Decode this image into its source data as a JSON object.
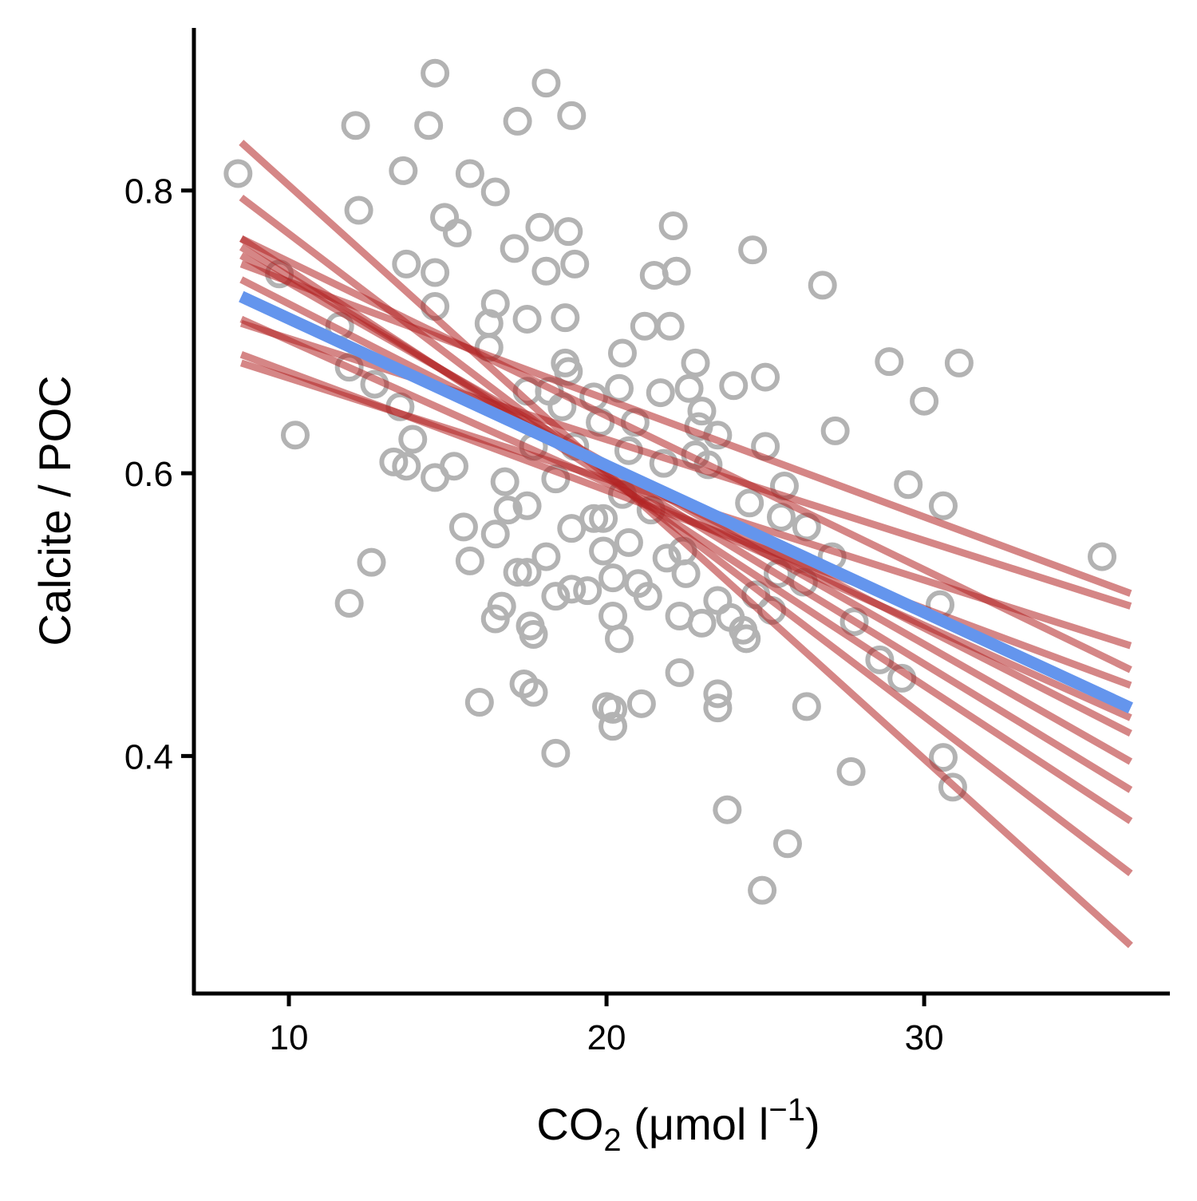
{
  "chart_data": {
    "type": "scatter",
    "x_label_parts": [
      "CO",
      "2",
      " (μmol l",
      "−1",
      ")"
    ],
    "y_label": "Calcite / POC",
    "xlim": [
      7.01,
      37.71
    ],
    "ylim": [
      0.232,
      0.915
    ],
    "xticks": [
      10,
      20,
      30
    ],
    "yticks": [
      0.4,
      0.6,
      0.8
    ],
    "point_color": "#b3b3b3",
    "fit_color": "#b22222",
    "mean_fit_color": "#6495ed",
    "points": {
      "x": [
        8.4,
        9.7,
        10.2,
        12.1,
        12.2,
        11.9,
        12.6,
        13.6,
        14.4,
        14.6,
        13.7,
        14.6,
        14.6,
        14.9,
        15.3,
        15.7,
        16.5,
        17.2,
        18.1,
        18.9,
        17.1,
        17.9,
        18.8,
        19.0,
        18.1,
        16.5,
        16.3,
        17.5,
        18.7,
        16.3,
        11.6,
        11.9,
        12.7,
        13.5,
        13.9,
        13.3,
        13.7,
        14.6,
        15.2,
        15.5,
        15.7,
        16.8,
        17.5,
        16.9,
        16.5,
        17.2,
        17.5,
        16.7,
        16.5,
        17.6,
        17.7,
        17.4,
        17.7,
        16.0,
        18.4,
        18.1,
        18.4,
        18.9,
        18.9,
        19.4,
        19.9,
        19.9,
        19.6,
        20.2,
        20.2,
        20.4,
        20.0,
        20.2,
        20.2,
        21.1,
        21.0,
        21.3,
        21.9,
        22.4,
        22.5,
        22.3,
        23.0,
        22.3,
        23.5,
        23.5,
        23.5,
        23.9,
        24.3,
        24.4,
        23.8,
        24.9,
        25.7,
        25.2,
        24.7,
        25.4,
        26.2,
        26.3,
        27.1,
        27.7,
        27.8,
        28.6,
        29.3,
        30.5,
        30.6,
        30.9,
        30.6,
        29.5,
        30.0,
        28.9,
        31.1,
        35.6,
        27.2,
        26.8,
        24.6,
        25.0,
        24.0,
        25.0,
        25.6,
        24.5,
        25.5,
        26.3,
        22.1,
        21.5,
        22.2,
        21.2,
        22.0,
        20.5,
        22.8,
        20.4,
        21.7,
        22.6,
        23.0,
        22.9,
        23.5,
        22.8,
        23.2,
        21.8,
        20.9,
        20.7,
        19.6,
        19.8,
        18.7,
        18.8,
        18.2,
        17.5,
        18.6,
        17.7,
        18.4,
        20.5,
        20.7,
        21.4,
        19.0
      ],
      "y": [
        0.812,
        0.741,
        0.627,
        0.846,
        0.786,
        0.508,
        0.537,
        0.814,
        0.846,
        0.883,
        0.748,
        0.742,
        0.718,
        0.781,
        0.77,
        0.812,
        0.799,
        0.849,
        0.876,
        0.853,
        0.759,
        0.774,
        0.771,
        0.748,
        0.743,
        0.72,
        0.706,
        0.709,
        0.71,
        0.689,
        0.704,
        0.675,
        0.663,
        0.647,
        0.624,
        0.608,
        0.605,
        0.597,
        0.605,
        0.562,
        0.538,
        0.594,
        0.577,
        0.574,
        0.557,
        0.53,
        0.53,
        0.506,
        0.497,
        0.492,
        0.486,
        0.451,
        0.445,
        0.438,
        0.402,
        0.541,
        0.513,
        0.518,
        0.561,
        0.517,
        0.568,
        0.545,
        0.568,
        0.526,
        0.499,
        0.483,
        0.435,
        0.433,
        0.421,
        0.437,
        0.522,
        0.513,
        0.54,
        0.545,
        0.529,
        0.499,
        0.494,
        0.459,
        0.444,
        0.434,
        0.51,
        0.498,
        0.489,
        0.483,
        0.362,
        0.305,
        0.338,
        0.503,
        0.514,
        0.529,
        0.523,
        0.435,
        0.541,
        0.389,
        0.495,
        0.468,
        0.455,
        0.507,
        0.399,
        0.378,
        0.577,
        0.592,
        0.651,
        0.679,
        0.678,
        0.541,
        0.63,
        0.733,
        0.758,
        0.668,
        0.662,
        0.619,
        0.591,
        0.579,
        0.569,
        0.562,
        0.775,
        0.74,
        0.743,
        0.704,
        0.704,
        0.685,
        0.678,
        0.66,
        0.657,
        0.66,
        0.644,
        0.633,
        0.627,
        0.613,
        0.606,
        0.607,
        0.636,
        0.616,
        0.654,
        0.636,
        0.678,
        0.672,
        0.658,
        0.658,
        0.647,
        0.619,
        0.596,
        0.585,
        0.551,
        0.574,
        0.619
      ]
    },
    "fit_x": [
      8.5,
      36.5
    ],
    "fits": [
      {
        "values": [
          0.834,
          0.266
        ]
      },
      {
        "values": [
          0.795,
          0.317
        ]
      },
      {
        "values": [
          0.766,
          0.354
        ]
      },
      {
        "values": [
          0.76,
          0.376
        ]
      },
      {
        "values": [
          0.754,
          0.396
        ]
      },
      {
        "values": [
          0.737,
          0.416
        ]
      },
      {
        "values": [
          0.709,
          0.427
        ]
      },
      {
        "values": [
          0.684,
          0.45
        ]
      },
      {
        "values": [
          0.678,
          0.478
        ]
      },
      {
        "values": [
          0.766,
          0.461
        ]
      },
      {
        "values": [
          0.706,
          0.506
        ]
      },
      {
        "values": [
          0.748,
          0.515
        ]
      }
    ],
    "mean_fit": {
      "values": [
        0.725,
        0.434
      ]
    }
  }
}
